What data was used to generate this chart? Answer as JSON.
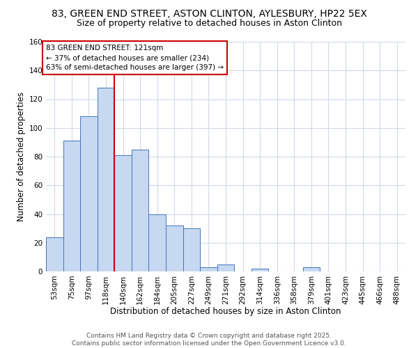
{
  "title": "83, GREEN END STREET, ASTON CLINTON, AYLESBURY, HP22 5EX",
  "subtitle": "Size of property relative to detached houses in Aston Clinton",
  "xlabel": "Distribution of detached houses by size in Aston Clinton",
  "ylabel": "Number of detached properties",
  "bin_labels": [
    "53sqm",
    "75sqm",
    "97sqm",
    "118sqm",
    "140sqm",
    "162sqm",
    "184sqm",
    "205sqm",
    "227sqm",
    "249sqm",
    "271sqm",
    "292sqm",
    "314sqm",
    "336sqm",
    "358sqm",
    "379sqm",
    "401sqm",
    "423sqm",
    "445sqm",
    "466sqm",
    "488sqm"
  ],
  "bar_heights": [
    24,
    91,
    108,
    128,
    81,
    85,
    40,
    32,
    30,
    3,
    5,
    0,
    2,
    0,
    0,
    3,
    0,
    0,
    0,
    0,
    0
  ],
  "bar_color": "#c6d9f0",
  "bar_edge_color": "#4472c4",
  "property_line_color": "#cc0000",
  "annotation_text": "83 GREEN END STREET: 121sqm\n← 37% of detached houses are smaller (234)\n63% of semi-detached houses are larger (397) →",
  "annotation_box_color": "#ffffff",
  "annotation_box_edge_color": "#cc0000",
  "ylim": [
    0,
    160
  ],
  "yticks": [
    0,
    20,
    40,
    60,
    80,
    100,
    120,
    140,
    160
  ],
  "footer_text": "Contains HM Land Registry data © Crown copyright and database right 2025.\nContains public sector information licensed under the Open Government Licence v3.0.",
  "background_color": "#ffffff",
  "grid_color": "#d0d8e8",
  "title_fontsize": 10,
  "subtitle_fontsize": 9,
  "axis_label_fontsize": 8.5,
  "tick_fontsize": 7.5,
  "annotation_fontsize": 7.5,
  "footer_fontsize": 6.5
}
